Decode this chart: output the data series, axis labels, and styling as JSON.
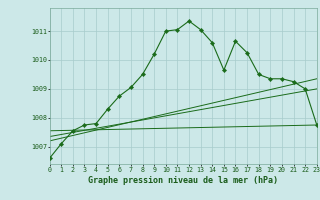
{
  "title": "Graphe pression niveau de la mer (hPa)",
  "background_color": "#cce8e8",
  "grid_color": "#a8cccc",
  "line_color": "#1a6b1a",
  "xlim": [
    0,
    23
  ],
  "ylim": [
    1006.4,
    1011.8
  ],
  "yticks": [
    1007,
    1008,
    1009,
    1010,
    1011
  ],
  "xticks": [
    0,
    1,
    2,
    3,
    4,
    5,
    6,
    7,
    8,
    9,
    10,
    11,
    12,
    13,
    14,
    15,
    16,
    17,
    18,
    19,
    20,
    21,
    22,
    23
  ],
  "series1_x": [
    0,
    1,
    2,
    3,
    4,
    5,
    6,
    7,
    8,
    9,
    10,
    11,
    12,
    13,
    14,
    15,
    16,
    17,
    18,
    19,
    20,
    21,
    22,
    23
  ],
  "series1_y": [
    1006.6,
    1007.1,
    1007.55,
    1007.75,
    1007.8,
    1008.3,
    1008.75,
    1009.05,
    1009.5,
    1010.2,
    1011.0,
    1011.05,
    1011.35,
    1011.05,
    1010.6,
    1009.65,
    1010.65,
    1010.25,
    1009.5,
    1009.35,
    1009.35,
    1009.25,
    1009.0,
    1007.75
  ],
  "line2_x": [
    0,
    23
  ],
  "line2_y": [
    1007.55,
    1007.75
  ],
  "line3_x": [
    0,
    23
  ],
  "line3_y": [
    1007.35,
    1009.0
  ],
  "line4_x": [
    0,
    23
  ],
  "line4_y": [
    1007.2,
    1009.35
  ]
}
